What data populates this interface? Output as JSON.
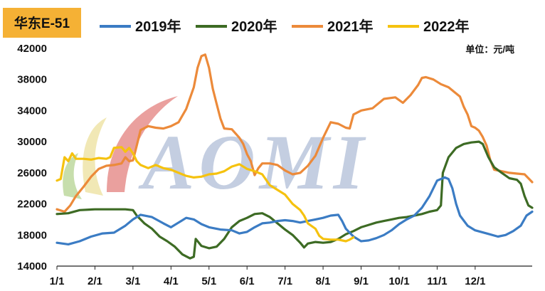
{
  "chart_data": {
    "type": "line",
    "title": "华东E-51",
    "unit": "单位：元/吨",
    "watermark": "AOMI",
    "ylim": [
      14000,
      42000
    ],
    "yticks": [
      14000,
      18000,
      22000,
      26000,
      30000,
      34000,
      38000,
      42000
    ],
    "xticks": [
      "1/1",
      "2/1",
      "3/1",
      "4/1",
      "5/1",
      "6/1",
      "7/1",
      "8/1",
      "9/1",
      "10/1",
      "11/1",
      "12/1"
    ],
    "grid": false,
    "legend_position": "top",
    "series": [
      {
        "name": "2019年",
        "color": "#3b7cc4",
        "points": [
          [
            0,
            17000
          ],
          [
            0.3,
            16800
          ],
          [
            0.6,
            17200
          ],
          [
            0.9,
            17800
          ],
          [
            1.2,
            18200
          ],
          [
            1.5,
            18300
          ],
          [
            1.8,
            19200
          ],
          [
            2.0,
            20000
          ],
          [
            2.2,
            20600
          ],
          [
            2.5,
            20300
          ],
          [
            2.8,
            19500
          ],
          [
            3.0,
            19000
          ],
          [
            3.2,
            19600
          ],
          [
            3.4,
            20200
          ],
          [
            3.6,
            20000
          ],
          [
            3.8,
            19400
          ],
          [
            4.0,
            19000
          ],
          [
            4.3,
            18700
          ],
          [
            4.6,
            18600
          ],
          [
            4.8,
            18200
          ],
          [
            5.0,
            18400
          ],
          [
            5.2,
            19000
          ],
          [
            5.4,
            19500
          ],
          [
            5.6,
            19600
          ],
          [
            5.8,
            19800
          ],
          [
            6.0,
            19900
          ],
          [
            6.2,
            19800
          ],
          [
            6.4,
            19600
          ],
          [
            6.6,
            19800
          ],
          [
            6.8,
            20000
          ],
          [
            7.0,
            20200
          ],
          [
            7.2,
            20500
          ],
          [
            7.4,
            20600
          ],
          [
            7.5,
            19800
          ],
          [
            7.6,
            18800
          ],
          [
            7.8,
            17800
          ],
          [
            8.0,
            17200
          ],
          [
            8.2,
            17300
          ],
          [
            8.4,
            17600
          ],
          [
            8.6,
            18000
          ],
          [
            8.8,
            18600
          ],
          [
            9.0,
            19400
          ],
          [
            9.2,
            20000
          ],
          [
            9.4,
            20500
          ],
          [
            9.6,
            21500
          ],
          [
            9.8,
            23000
          ],
          [
            10.0,
            25000
          ],
          [
            10.2,
            25400
          ],
          [
            10.3,
            25200
          ],
          [
            10.4,
            24000
          ],
          [
            10.5,
            22000
          ],
          [
            10.6,
            20500
          ],
          [
            10.8,
            19200
          ],
          [
            11.0,
            18600
          ],
          [
            11.3,
            18200
          ],
          [
            11.6,
            17800
          ],
          [
            11.8,
            18000
          ],
          [
            12.0,
            18500
          ],
          [
            12.2,
            19200
          ],
          [
            12.35,
            20500
          ],
          [
            12.5,
            21000
          ]
        ]
      },
      {
        "name": "2020年",
        "color": "#3d6b24",
        "points": [
          [
            0,
            20700
          ],
          [
            0.3,
            20800
          ],
          [
            0.6,
            21200
          ],
          [
            1.0,
            21300
          ],
          [
            1.4,
            21300
          ],
          [
            1.8,
            21300
          ],
          [
            2.0,
            21200
          ],
          [
            2.1,
            20500
          ],
          [
            2.3,
            19500
          ],
          [
            2.5,
            18800
          ],
          [
            2.7,
            17800
          ],
          [
            2.9,
            17200
          ],
          [
            3.1,
            16500
          ],
          [
            3.3,
            15500
          ],
          [
            3.5,
            15000
          ],
          [
            3.6,
            15200
          ],
          [
            3.65,
            17500
          ],
          [
            3.8,
            16600
          ],
          [
            4.0,
            16300
          ],
          [
            4.2,
            16500
          ],
          [
            4.4,
            17500
          ],
          [
            4.6,
            19000
          ],
          [
            4.8,
            19800
          ],
          [
            5.0,
            20200
          ],
          [
            5.2,
            20700
          ],
          [
            5.4,
            20800
          ],
          [
            5.6,
            20300
          ],
          [
            5.8,
            19500
          ],
          [
            6.0,
            18700
          ],
          [
            6.2,
            18000
          ],
          [
            6.4,
            17000
          ],
          [
            6.5,
            16400
          ],
          [
            6.6,
            16900
          ],
          [
            6.8,
            17100
          ],
          [
            7.0,
            17000
          ],
          [
            7.2,
            17100
          ],
          [
            7.4,
            17500
          ],
          [
            7.6,
            18100
          ],
          [
            7.8,
            18500
          ],
          [
            8.0,
            19000
          ],
          [
            8.2,
            19300
          ],
          [
            8.4,
            19600
          ],
          [
            8.6,
            19800
          ],
          [
            8.8,
            20000
          ],
          [
            9.0,
            20200
          ],
          [
            9.2,
            20300
          ],
          [
            9.4,
            20500
          ],
          [
            9.6,
            20700
          ],
          [
            9.8,
            21000
          ],
          [
            10.0,
            21200
          ],
          [
            10.1,
            21800
          ],
          [
            10.15,
            26000
          ],
          [
            10.3,
            28000
          ],
          [
            10.5,
            29200
          ],
          [
            10.7,
            29700
          ],
          [
            10.9,
            29900
          ],
          [
            11.1,
            30000
          ],
          [
            11.2,
            29700
          ],
          [
            11.35,
            28000
          ],
          [
            11.5,
            26700
          ],
          [
            11.7,
            26000
          ],
          [
            11.9,
            25300
          ],
          [
            12.1,
            25100
          ],
          [
            12.2,
            24600
          ],
          [
            12.3,
            23000
          ],
          [
            12.4,
            21800
          ],
          [
            12.5,
            21500
          ]
        ]
      },
      {
        "name": "2021年",
        "color": "#ec8a3a",
        "points": [
          [
            0,
            21300
          ],
          [
            0.2,
            21000
          ],
          [
            0.35,
            21800
          ],
          [
            0.5,
            23000
          ],
          [
            0.7,
            24200
          ],
          [
            0.9,
            25500
          ],
          [
            1.1,
            26500
          ],
          [
            1.3,
            26900
          ],
          [
            1.5,
            27000
          ],
          [
            1.7,
            27200
          ],
          [
            1.8,
            28000
          ],
          [
            1.9,
            27500
          ],
          [
            2.0,
            27600
          ],
          [
            2.1,
            29500
          ],
          [
            2.2,
            31500
          ],
          [
            2.4,
            32000
          ],
          [
            2.6,
            31800
          ],
          [
            2.8,
            31700
          ],
          [
            3.0,
            32000
          ],
          [
            3.2,
            32500
          ],
          [
            3.4,
            34200
          ],
          [
            3.6,
            37000
          ],
          [
            3.7,
            39500
          ],
          [
            3.8,
            41000
          ],
          [
            3.9,
            41200
          ],
          [
            4.0,
            39500
          ],
          [
            4.1,
            36800
          ],
          [
            4.2,
            34900
          ],
          [
            4.3,
            33000
          ],
          [
            4.4,
            31700
          ],
          [
            4.6,
            31600
          ],
          [
            4.8,
            30500
          ],
          [
            4.9,
            29700
          ],
          [
            5.0,
            28400
          ],
          [
            5.1,
            27500
          ],
          [
            5.2,
            25700
          ],
          [
            5.3,
            26600
          ],
          [
            5.4,
            27200
          ],
          [
            5.6,
            27200
          ],
          [
            5.8,
            27000
          ],
          [
            6.0,
            26300
          ],
          [
            6.2,
            25800
          ],
          [
            6.4,
            26000
          ],
          [
            6.6,
            26900
          ],
          [
            6.8,
            28200
          ],
          [
            7.0,
            30500
          ],
          [
            7.2,
            32500
          ],
          [
            7.4,
            32300
          ],
          [
            7.6,
            31800
          ],
          [
            7.7,
            31700
          ],
          [
            7.8,
            33500
          ],
          [
            8.0,
            34000
          ],
          [
            8.3,
            34300
          ],
          [
            8.6,
            35500
          ],
          [
            8.9,
            35700
          ],
          [
            9.1,
            35000
          ],
          [
            9.3,
            36000
          ],
          [
            9.5,
            37300
          ],
          [
            9.6,
            38200
          ],
          [
            9.7,
            38300
          ],
          [
            9.9,
            38000
          ],
          [
            10.1,
            37400
          ],
          [
            10.3,
            37000
          ],
          [
            10.5,
            36200
          ],
          [
            10.6,
            35800
          ],
          [
            10.7,
            34500
          ],
          [
            10.8,
            33500
          ],
          [
            10.9,
            32000
          ],
          [
            11.0,
            31800
          ],
          [
            11.1,
            31400
          ],
          [
            11.2,
            30600
          ],
          [
            11.3,
            29500
          ],
          [
            11.4,
            27600
          ],
          [
            11.5,
            26400
          ],
          [
            11.7,
            26200
          ],
          [
            11.9,
            26000
          ],
          [
            12.1,
            25900
          ],
          [
            12.3,
            25800
          ],
          [
            12.4,
            25300
          ],
          [
            12.5,
            24800
          ]
        ]
      },
      {
        "name": "2022年",
        "color": "#f5c20f",
        "points": [
          [
            0,
            25000
          ],
          [
            0.1,
            25200
          ],
          [
            0.2,
            28000
          ],
          [
            0.3,
            27500
          ],
          [
            0.4,
            28500
          ],
          [
            0.5,
            27800
          ],
          [
            0.7,
            27800
          ],
          [
            0.9,
            27700
          ],
          [
            1.1,
            27900
          ],
          [
            1.3,
            27800
          ],
          [
            1.4,
            28000
          ],
          [
            1.5,
            29200
          ],
          [
            1.7,
            29300
          ],
          [
            1.8,
            28700
          ],
          [
            1.9,
            29200
          ],
          [
            2.0,
            28500
          ],
          [
            2.1,
            27500
          ],
          [
            2.2,
            27000
          ],
          [
            2.4,
            26600
          ],
          [
            2.6,
            27000
          ],
          [
            2.8,
            26600
          ],
          [
            3.0,
            26400
          ],
          [
            3.2,
            26000
          ],
          [
            3.4,
            25600
          ],
          [
            3.6,
            25400
          ],
          [
            3.8,
            25500
          ],
          [
            4.0,
            25800
          ],
          [
            4.2,
            25900
          ],
          [
            4.4,
            26200
          ],
          [
            4.6,
            26800
          ],
          [
            4.8,
            27100
          ],
          [
            5.0,
            26500
          ],
          [
            5.2,
            26200
          ],
          [
            5.4,
            25800
          ],
          [
            5.6,
            24400
          ],
          [
            5.8,
            23800
          ],
          [
            6.0,
            23200
          ],
          [
            6.2,
            22000
          ],
          [
            6.4,
            21200
          ],
          [
            6.5,
            20500
          ],
          [
            6.6,
            19500
          ],
          [
            6.8,
            18800
          ],
          [
            6.9,
            17900
          ],
          [
            7.0,
            17500
          ],
          [
            7.2,
            17400
          ],
          [
            7.4,
            17400
          ],
          [
            7.6,
            17200
          ],
          [
            7.7,
            17400
          ],
          [
            7.8,
            17700
          ]
        ]
      }
    ]
  }
}
